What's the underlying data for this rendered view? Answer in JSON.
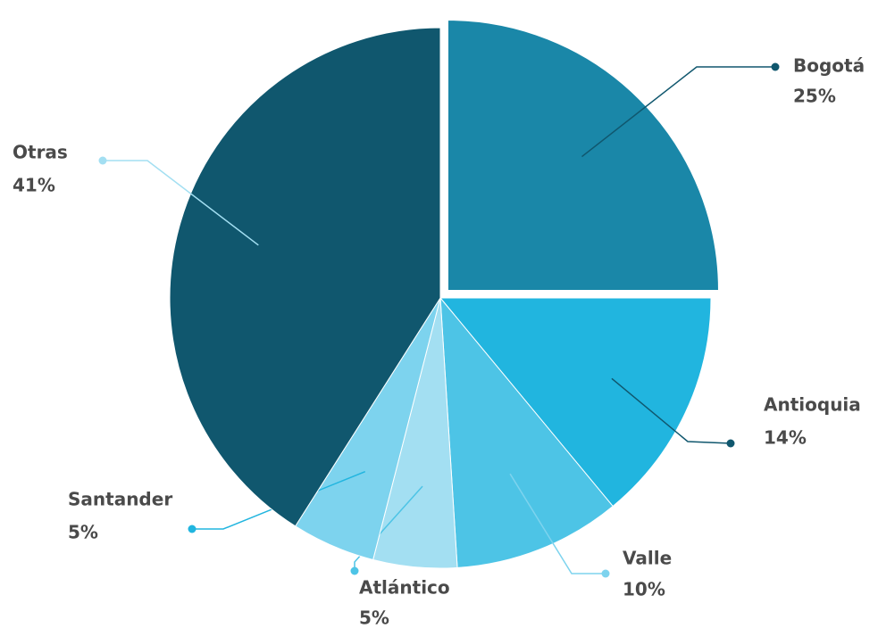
{
  "chart_data": {
    "type": "pie",
    "categories": [
      "Bogotá",
      "Antioquia",
      "Valle",
      "Atlántico",
      "Santander",
      "Otras"
    ],
    "values": [
      25,
      14,
      10,
      5,
      5,
      41
    ],
    "value_labels": [
      "25%",
      "14%",
      "10%",
      "5%",
      "5%",
      "41%"
    ],
    "colors": [
      "#1a87a8",
      "#21b5df",
      "#4dc4e6",
      "#a3dff2",
      "#7dd3ee",
      "#10576e"
    ]
  }
}
